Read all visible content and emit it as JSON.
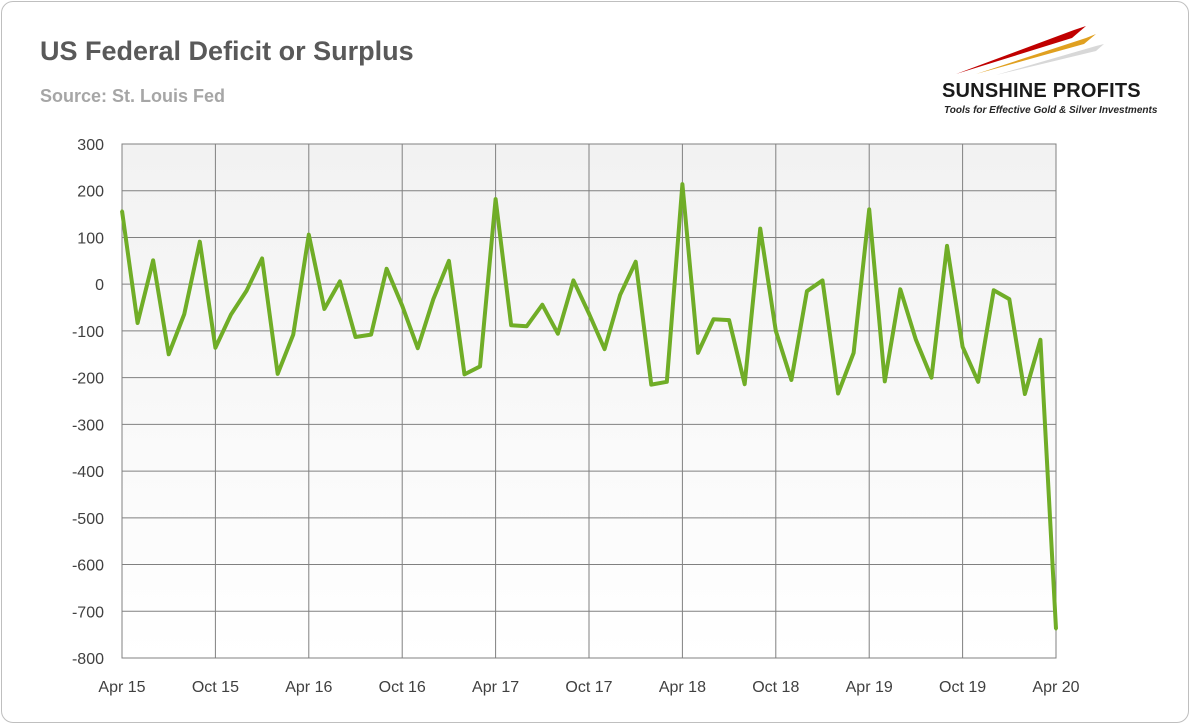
{
  "header": {
    "title": "US Federal Deficit or Surplus",
    "subtitle": "Source: St. Louis Fed"
  },
  "logo": {
    "name": "SUNSHINE PROFITS",
    "tagline": "Tools for Effective Gold & Silver Investments",
    "colors": [
      "#c00000",
      "#e0a020",
      "#d8d8d8"
    ]
  },
  "chart_data": {
    "type": "line",
    "title": "US Federal Deficit or Surplus",
    "subtitle": "Source: St. Louis Fed",
    "xlabel": "",
    "ylabel": "",
    "ylim": [
      -800,
      300
    ],
    "yticks": [
      300,
      200,
      100,
      0,
      -100,
      -200,
      -300,
      -400,
      -500,
      -600,
      -700,
      -800
    ],
    "xtick_labels": [
      "Apr 15",
      "Oct 15",
      "Apr 16",
      "Oct 16",
      "Apr 17",
      "Oct 17",
      "Apr 18",
      "Oct 18",
      "Apr 19",
      "Oct 19",
      "Apr 20"
    ],
    "xtick_every_months": 6,
    "x_start": "Apr 15",
    "x_end": "Apr 20",
    "grid": true,
    "legend": "none",
    "line_color": "#70ad27",
    "plot_bg_top": "#f2f2f2",
    "plot_bg_bottom": "#ffffff",
    "series": [
      {
        "values": [
          157,
          -83,
          51,
          -150,
          -64,
          91,
          -136,
          -65,
          -14,
          55,
          -192,
          -108,
          106,
          -53,
          6,
          -113,
          -108,
          33,
          -46,
          -137,
          -32,
          50,
          -193,
          -176,
          182,
          -88,
          -90,
          -44,
          -106,
          8,
          -63,
          -139,
          -23,
          48,
          -215,
          -209,
          214,
          -147,
          -75,
          -77,
          -214,
          119,
          -100,
          -205,
          -15,
          8,
          -234,
          -147,
          160,
          -208,
          -11,
          -119,
          -200,
          82,
          -134,
          -209,
          -13,
          -32,
          -235,
          -119,
          -738
        ]
      }
    ]
  }
}
